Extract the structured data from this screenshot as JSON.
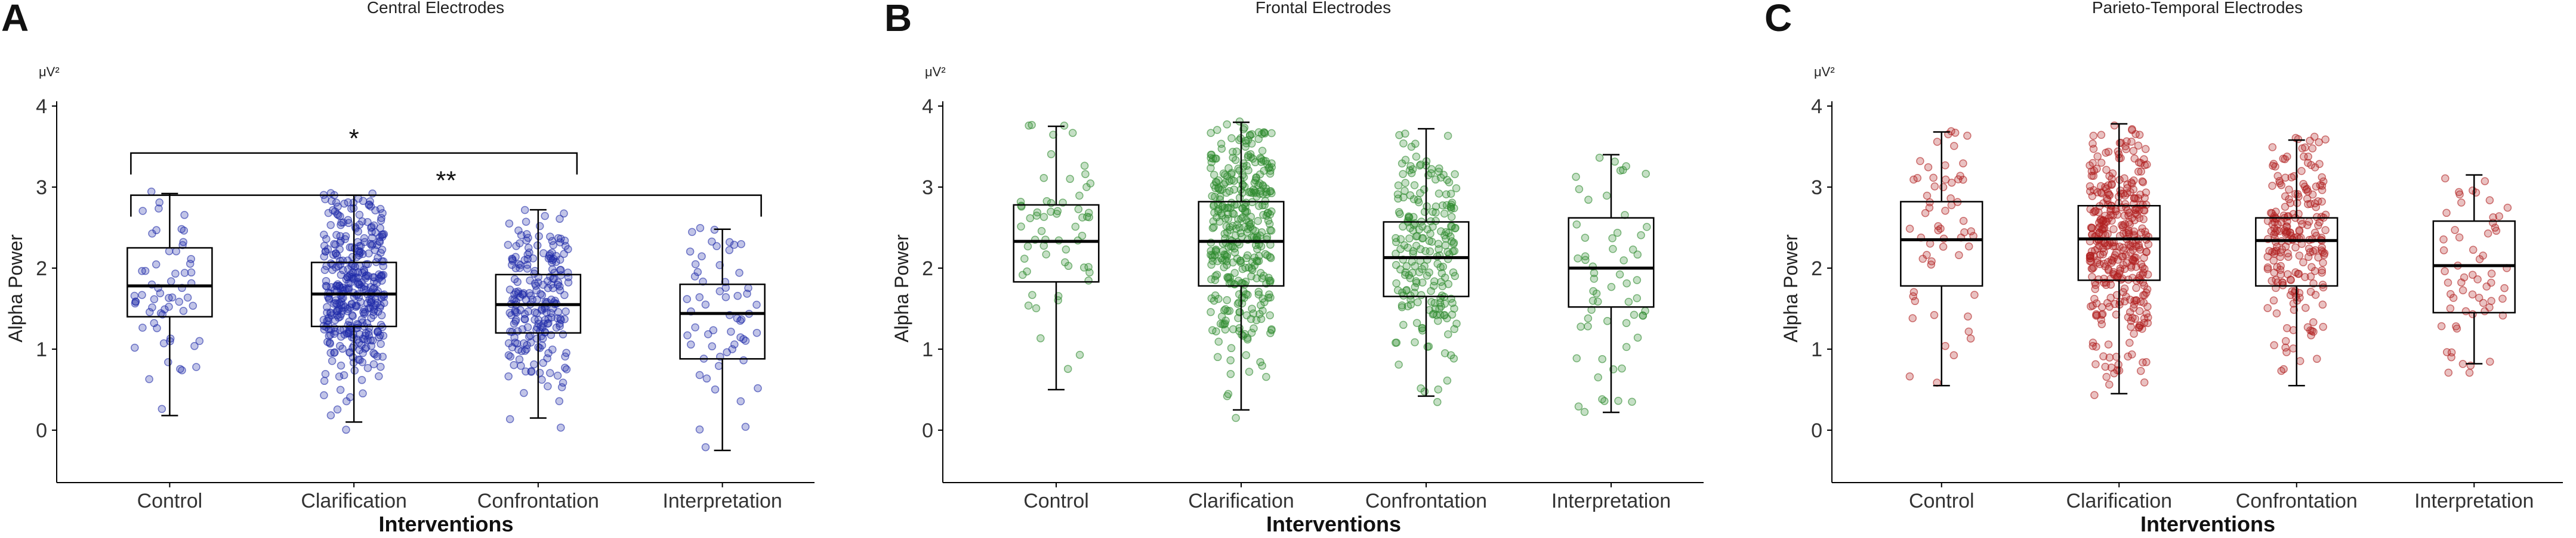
{
  "chart_data": [
    {
      "type": "box",
      "panel_label": "A",
      "title": "Central Electrodes",
      "unit": "μV²",
      "ylabel": "Alpha Power",
      "xlabel": "Interventions",
      "ylim": [
        -0.5,
        4
      ],
      "yticks": [
        0,
        1,
        2,
        3,
        4
      ],
      "categories": [
        "Control",
        "Clarification",
        "Confrontation",
        "Interpretation"
      ],
      "point_color": "#1f2ba8",
      "point_counts": [
        60,
        380,
        220,
        60
      ],
      "boxes": [
        {
          "q1": 1.4,
          "median": 1.78,
          "q3": 2.25,
          "whisker_low": 0.18,
          "whisker_high": 2.92
        },
        {
          "q1": 1.28,
          "median": 1.68,
          "q3": 2.07,
          "whisker_low": 0.1,
          "whisker_high": 2.9
        },
        {
          "q1": 1.2,
          "median": 1.55,
          "q3": 1.92,
          "whisker_low": 0.15,
          "whisker_high": 2.72
        },
        {
          "q1": 0.88,
          "median": 1.44,
          "q3": 1.8,
          "whisker_low": -0.25,
          "whisker_high": 2.48
        }
      ],
      "brackets": [
        {
          "from": 0,
          "to": 2,
          "y": 3.42,
          "label": "*"
        },
        {
          "from": 0,
          "to": 3,
          "y": 2.9,
          "label": "**"
        }
      ]
    },
    {
      "type": "box",
      "panel_label": "B",
      "title": "Frontal Electrodes",
      "unit": "μV²",
      "ylabel": "Alpha Power",
      "xlabel": "Interventions",
      "ylim": [
        -0.5,
        4
      ],
      "yticks": [
        0,
        1,
        2,
        3,
        4
      ],
      "categories": [
        "Control",
        "Clarification",
        "Confrontation",
        "Interpretation"
      ],
      "point_color": "#2e8b2e",
      "point_counts": [
        60,
        380,
        220,
        60
      ],
      "boxes": [
        {
          "q1": 1.83,
          "median": 2.33,
          "q3": 2.78,
          "whisker_low": 0.5,
          "whisker_high": 3.75
        },
        {
          "q1": 1.78,
          "median": 2.33,
          "q3": 2.82,
          "whisker_low": 0.25,
          "whisker_high": 3.8
        },
        {
          "q1": 1.65,
          "median": 2.13,
          "q3": 2.57,
          "whisker_low": 0.42,
          "whisker_high": 3.72
        },
        {
          "q1": 1.52,
          "median": 2.0,
          "q3": 2.62,
          "whisker_low": 0.22,
          "whisker_high": 3.4
        }
      ],
      "brackets": []
    },
    {
      "type": "box",
      "panel_label": "C",
      "title": "Parieto-Temporal Electrodes",
      "unit": "μV²",
      "ylabel": "Alpha Power",
      "xlabel": "Interventions",
      "ylim": [
        -0.5,
        4
      ],
      "yticks": [
        0,
        1,
        2,
        3,
        4
      ],
      "categories": [
        "Control",
        "Clarification",
        "Confrontation",
        "Interpretation"
      ],
      "point_color": "#b01f1f",
      "point_counts": [
        60,
        380,
        220,
        60
      ],
      "boxes": [
        {
          "q1": 1.78,
          "median": 2.35,
          "q3": 2.82,
          "whisker_low": 0.55,
          "whisker_high": 3.68
        },
        {
          "q1": 1.85,
          "median": 2.36,
          "q3": 2.77,
          "whisker_low": 0.45,
          "whisker_high": 3.78
        },
        {
          "q1": 1.78,
          "median": 2.34,
          "q3": 2.62,
          "whisker_low": 0.55,
          "whisker_high": 3.58
        },
        {
          "q1": 1.45,
          "median": 2.03,
          "q3": 2.58,
          "whisker_low": 0.82,
          "whisker_high": 3.15
        }
      ],
      "brackets": []
    }
  ]
}
